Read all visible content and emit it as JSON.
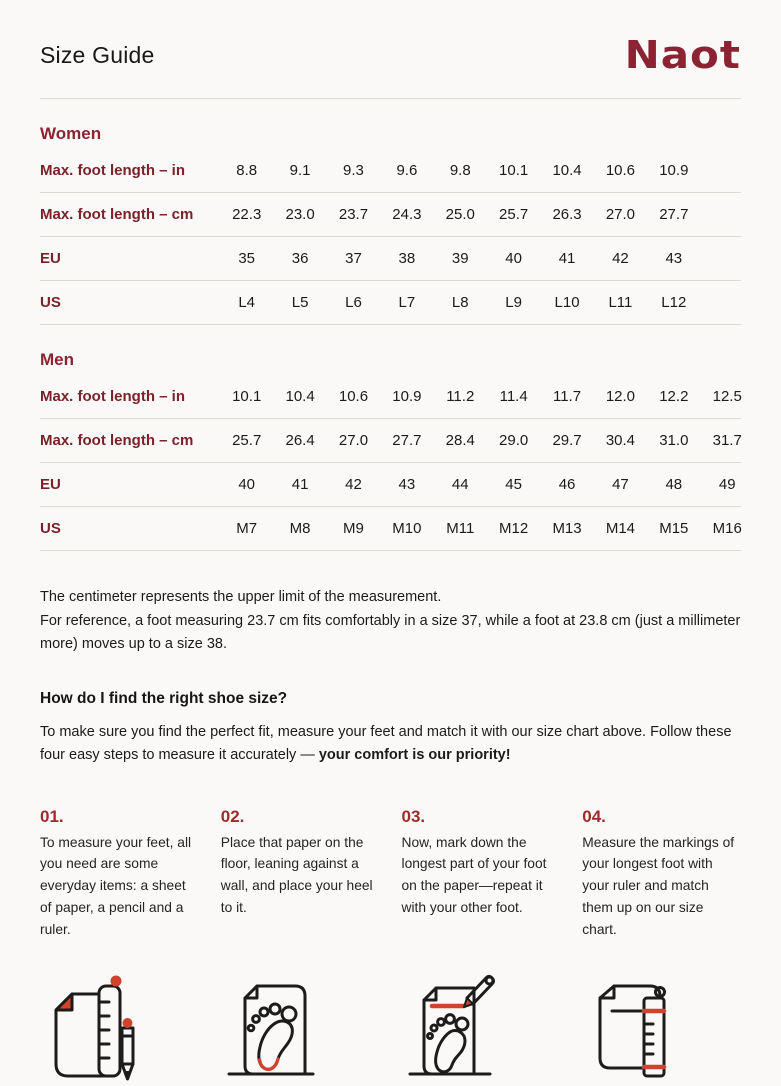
{
  "page": {
    "title": "Size Guide",
    "brand": "Naot"
  },
  "colors": {
    "background": "#faf9f7",
    "brand_red": "#8b2332",
    "label_red": "#7c202a",
    "step_red": "#9e2b2b",
    "divider": "#ddd9d3",
    "icon_stroke": "#1c1c1c",
    "icon_accent": "#d0432e"
  },
  "tables": [
    {
      "section": "Women",
      "rows": [
        {
          "label": "Max. foot length – in",
          "values": [
            "8.8",
            "9.1",
            "9.3",
            "9.6",
            "9.8",
            "10.1",
            "10.4",
            "10.6",
            "10.9"
          ]
        },
        {
          "label": "Max. foot length – cm",
          "values": [
            "22.3",
            "23.0",
            "23.7",
            "24.3",
            "25.0",
            "25.7",
            "26.3",
            "27.0",
            "27.7"
          ]
        },
        {
          "label": "EU",
          "values": [
            "35",
            "36",
            "37",
            "38",
            "39",
            "40",
            "41",
            "42",
            "43"
          ]
        },
        {
          "label": "US",
          "values": [
            "L4",
            "L5",
            "L6",
            "L7",
            "L8",
            "L9",
            "L10",
            "L11",
            "L12"
          ]
        }
      ]
    },
    {
      "section": "Men",
      "rows": [
        {
          "label": "Max. foot length – in",
          "values": [
            "10.1",
            "10.4",
            "10.6",
            "10.9",
            "11.2",
            "11.4",
            "11.7",
            "12.0",
            "12.2",
            "12.5"
          ]
        },
        {
          "label": "Max. foot length – cm",
          "values": [
            "25.7",
            "26.4",
            "27.0",
            "27.7",
            "28.4",
            "29.0",
            "29.7",
            "30.4",
            "31.0",
            "31.7"
          ]
        },
        {
          "label": "EU",
          "values": [
            "40",
            "41",
            "42",
            "43",
            "44",
            "45",
            "46",
            "47",
            "48",
            "49"
          ]
        },
        {
          "label": "US",
          "values": [
            "M7",
            "M8",
            "M9",
            "M10",
            "M11",
            "M12",
            "M13",
            "M14",
            "M15",
            "M16"
          ]
        }
      ]
    }
  ],
  "notes": {
    "line1": "The centimeter represents the upper limit of the measurement.",
    "line2": "For reference, a foot measuring 23.7 cm fits comfortably in a size 37, while a foot at 23.8 cm (just a millimeter more) moves up to a size 38."
  },
  "how_to": {
    "heading": "How do I find the right shoe size?",
    "intro_regular": "To make sure you find the perfect fit, measure your feet and match it with our size chart above. Follow these four easy steps to measure it accurately — ",
    "intro_bold": "your comfort is our priority!"
  },
  "steps": [
    {
      "number": "01.",
      "text": "To measure your feet, all you need are some everyday items: a sheet of paper, a pencil and a ruler.",
      "icon": "paper-ruler-pencil-icon"
    },
    {
      "number": "02.",
      "text": "Place that paper on the floor, leaning against a wall, and place your heel to it.",
      "icon": "paper-footprint-icon"
    },
    {
      "number": "03.",
      "text": "Now, mark down the longest part of your foot on the paper—repeat it with your other foot.",
      "icon": "paper-footprint-pencil-icon"
    },
    {
      "number": "04.",
      "text": "Measure the markings of your longest foot with your ruler and match them up on our size chart.",
      "icon": "paper-ruler-measure-icon"
    }
  ]
}
